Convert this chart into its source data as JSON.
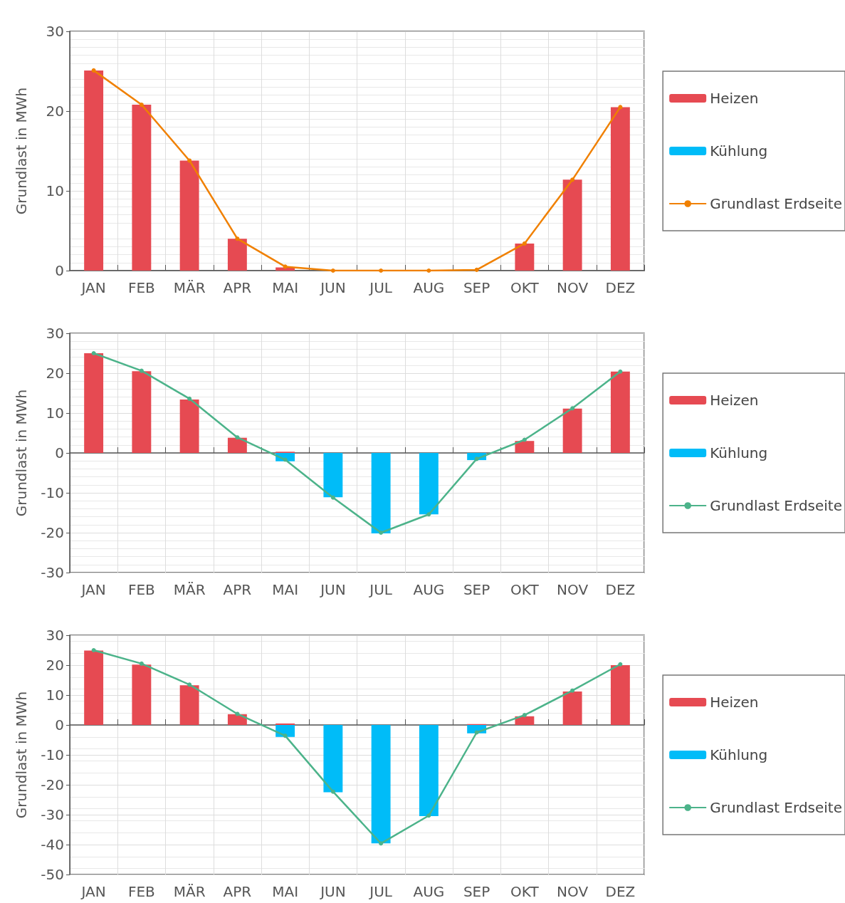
{
  "chart_data": [
    {
      "type": "bar",
      "ylabel": "Grundlast in MWh",
      "categories": [
        "JAN",
        "FEB",
        "MÄR",
        "APR",
        "MAI",
        "JUN",
        "JUL",
        "AUG",
        "SEP",
        "OKT",
        "NOV",
        "DEZ"
      ],
      "stacked": true,
      "ylim": [
        0,
        30
      ],
      "yticks": [
        0,
        10,
        20,
        30
      ],
      "grid": true,
      "legend": "right",
      "marker": "circle",
      "series": [
        {
          "name": "Heizen",
          "color": "#e64a52",
          "values": [
            25.1,
            20.8,
            13.8,
            4.0,
            0.4,
            0,
            0,
            0,
            0,
            3.4,
            11.4,
            20.5
          ]
        },
        {
          "name": "Kühlung",
          "color": "#00bcf8",
          "values": [
            0,
            0,
            0,
            0,
            0,
            0,
            0,
            0,
            0,
            0,
            0,
            0
          ]
        },
        {
          "name": "Grundlast Erdseite",
          "type": "line",
          "color": "#f08000",
          "values": [
            25.1,
            20.8,
            13.8,
            4.0,
            0.5,
            0,
            0,
            0,
            0.1,
            3.4,
            11.4,
            20.5
          ]
        }
      ]
    },
    {
      "type": "bar",
      "ylabel": "Grundlast in MWh",
      "categories": [
        "JAN",
        "FEB",
        "MÄR",
        "APR",
        "MAI",
        "JUN",
        "JUL",
        "AUG",
        "SEP",
        "OKT",
        "NOV",
        "DEZ"
      ],
      "stacked": true,
      "ylim": [
        -30,
        30
      ],
      "yticks": [
        -30,
        -20,
        -10,
        0,
        10,
        20,
        30
      ],
      "grid": true,
      "legend": "right",
      "marker": "circle",
      "series": [
        {
          "name": "Heizen",
          "color": "#e64a52",
          "values": [
            25.0,
            20.5,
            13.4,
            3.8,
            0.3,
            0,
            0,
            0,
            0,
            3.0,
            11.1,
            20.4
          ]
        },
        {
          "name": "Kühlung",
          "color": "#00bcf8",
          "values": [
            0,
            0,
            0,
            0,
            -2.1,
            -11.1,
            -20.2,
            -15.4,
            -1.8,
            0,
            0,
            0
          ]
        },
        {
          "name": "Grundlast Erdseite",
          "type": "line",
          "color": "#4cb38a",
          "values": [
            25.0,
            20.6,
            13.6,
            3.9,
            -1.7,
            -11.2,
            -20.0,
            -15.4,
            -1.5,
            3.3,
            11.2,
            20.4
          ]
        }
      ]
    },
    {
      "type": "bar",
      "ylabel": "Grundlast in MWh",
      "categories": [
        "JAN",
        "FEB",
        "MÄR",
        "APR",
        "MAI",
        "JUN",
        "JUL",
        "AUG",
        "SEP",
        "OKT",
        "NOV",
        "DEZ"
      ],
      "stacked": true,
      "ylim": [
        -50,
        30
      ],
      "yticks": [
        -50,
        -40,
        -30,
        -20,
        -10,
        0,
        10,
        20,
        30
      ],
      "grid": true,
      "legend": "right",
      "marker": "circle",
      "series": [
        {
          "name": "Heizen",
          "color": "#e64a52",
          "values": [
            24.9,
            20.2,
            13.3,
            3.6,
            0.5,
            0,
            0,
            0,
            0.3,
            2.9,
            11.2,
            20.0
          ]
        },
        {
          "name": "Kühlung",
          "color": "#00bcf8",
          "values": [
            0,
            0,
            0,
            0,
            -4.0,
            -22.5,
            -39.6,
            -30.5,
            -2.8,
            0,
            0,
            0
          ]
        },
        {
          "name": "Grundlast Erdseite",
          "type": "line",
          "color": "#4cb38a",
          "values": [
            25.0,
            20.5,
            13.5,
            3.7,
            -3.6,
            -22.3,
            -39.6,
            -30.3,
            -2.5,
            3.3,
            11.5,
            20.3
          ]
        }
      ]
    }
  ]
}
